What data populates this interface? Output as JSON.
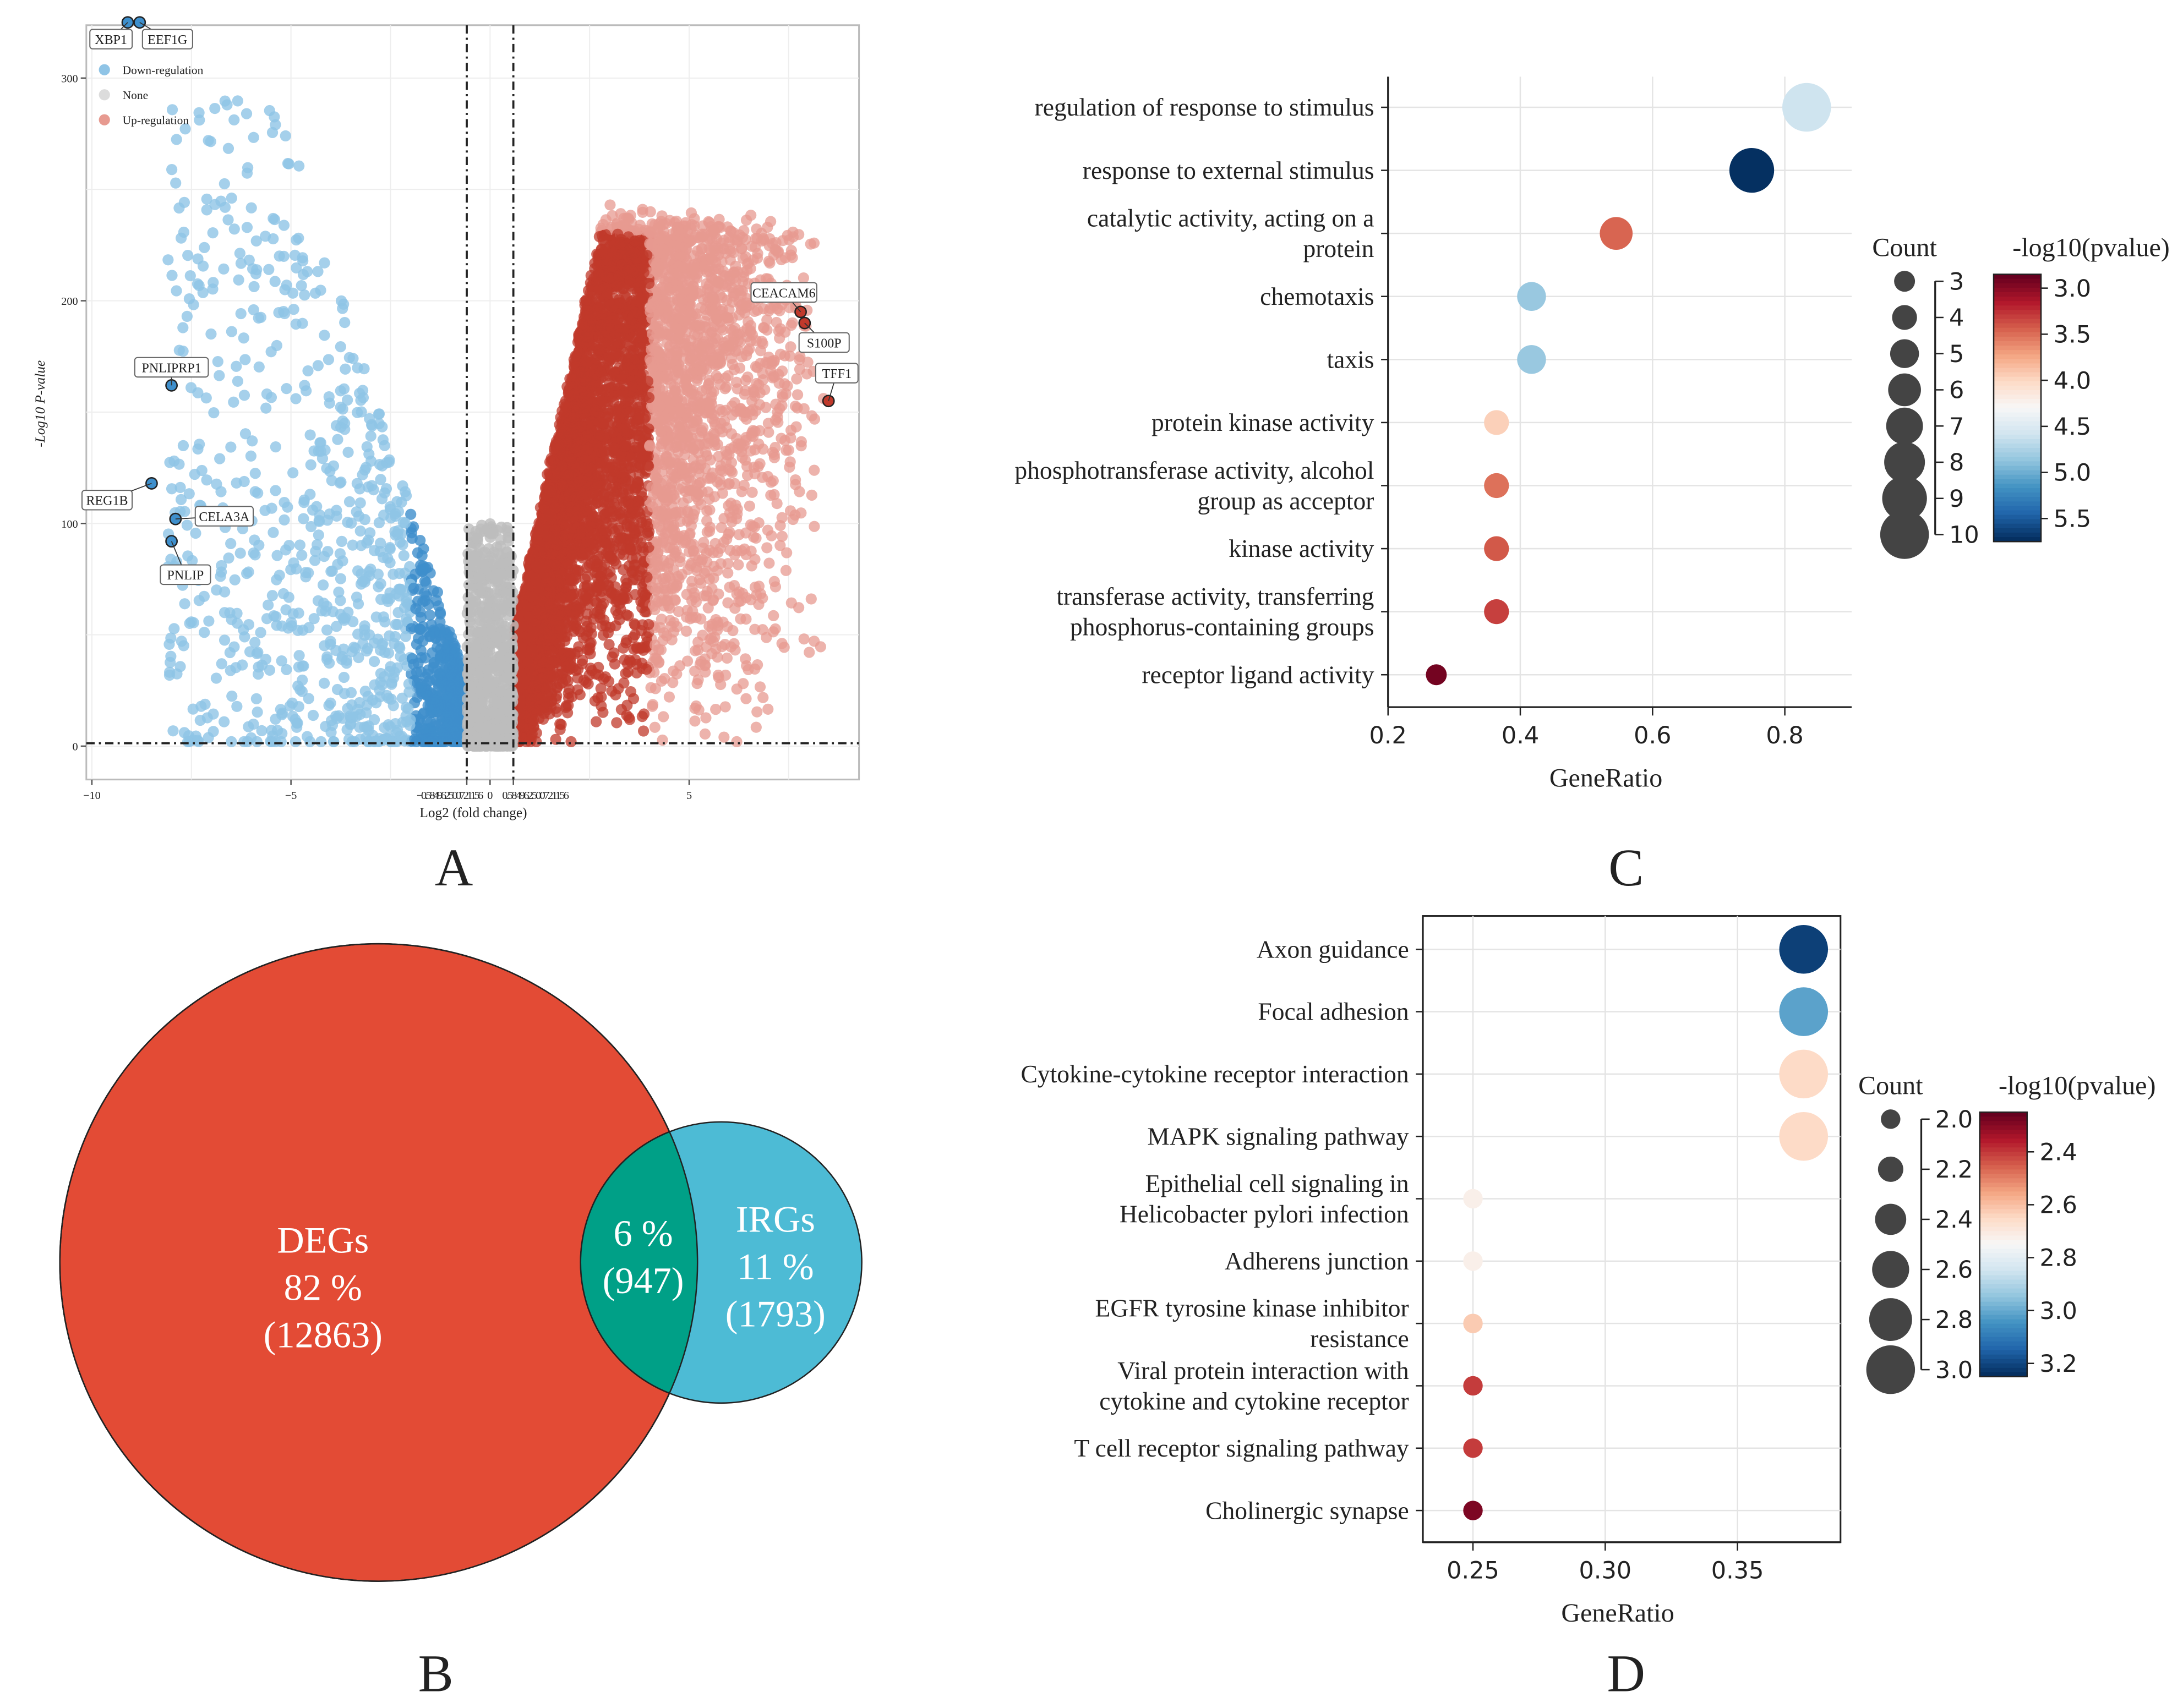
{
  "panel_labels": {
    "a": "A",
    "b": "B",
    "c": "C",
    "d": "D"
  },
  "chart_data": [
    {
      "id": "A",
      "type": "scatter",
      "title": "",
      "xlabel": "Log2 (fold change)",
      "ylabel": "-Log10 P-value",
      "xlim": [
        -10.1,
        9.3
      ],
      "ylim": [
        -15,
        335
      ],
      "xticks": [
        "-10",
        "-5",
        "-0.584962500721156",
        "0",
        "0.584962500721156",
        "5"
      ],
      "xtick_values": [
        -10,
        -5,
        -0.585,
        0,
        0.585,
        5
      ],
      "yticks": [
        0,
        100,
        200,
        300
      ],
      "thresholds": {
        "logfc": 0.585,
        "p_line": 1.3
      },
      "legend": [
        "Down-regulation",
        "None",
        "Up-regulation"
      ],
      "colors": {
        "down": "#3e8fcc",
        "none": "#bdbdbd",
        "up": "#c0392b",
        "down_light": "#8fc4e6",
        "up_light": "#e79a90"
      },
      "approx_counts": {
        "down": 1300,
        "none": 900,
        "up": 6500
      },
      "labeled_genes": [
        {
          "gene": "XBP1",
          "x": -9.1,
          "y": 325
        },
        {
          "gene": "EEF1G",
          "x": -8.8,
          "y": 325
        },
        {
          "gene": "PNLIPRP1",
          "x": -8.0,
          "y": 162
        },
        {
          "gene": "REG1B",
          "x": -8.5,
          "y": 118
        },
        {
          "gene": "CELA3A",
          "x": -7.9,
          "y": 102
        },
        {
          "gene": "PNLIP",
          "x": -8.0,
          "y": 92
        },
        {
          "gene": "CEACAM6",
          "x": 7.8,
          "y": 195
        },
        {
          "gene": "S100P",
          "x": 7.9,
          "y": 190
        },
        {
          "gene": "TFF1",
          "x": 8.5,
          "y": 155
        }
      ]
    },
    {
      "id": "B",
      "type": "venn",
      "sets": [
        {
          "name": "DEGs",
          "percent": "82 %",
          "count": "(12863)",
          "color": "#e34b35"
        },
        {
          "name": "IRGs",
          "percent": "11 %",
          "count": "(1793)",
          "color": "#4dbbd5"
        }
      ],
      "overlap": {
        "percent": "6 %",
        "count": "(947)",
        "color": "#00a087"
      }
    },
    {
      "id": "C",
      "type": "scatter",
      "xlabel": "GeneRatio",
      "xlim": [
        0.2,
        0.9
      ],
      "xticks": [
        0.2,
        0.4,
        0.6,
        0.8
      ],
      "terms": [
        "regulation of response to stimulus",
        "response to external stimulus",
        "catalytic activity, acting on a|protein",
        "chemotaxis",
        "taxis",
        "protein kinase activity",
        "phosphotransferase activity, alcohol|group as acceptor",
        "kinase activity",
        "transferase activity, transferring|phosphorus-containing groups",
        "receptor ligand activity"
      ],
      "gene_ratio": [
        0.833,
        0.75,
        0.545,
        0.417,
        0.417,
        0.364,
        0.364,
        0.364,
        0.364,
        0.273
      ],
      "neg_log10_p": [
        4.6,
        5.75,
        3.45,
        4.85,
        4.85,
        3.95,
        3.5,
        3.4,
        3.3,
        2.9
      ],
      "count": [
        10,
        9,
        6,
        5,
        5,
        4,
        4,
        4,
        4,
        3
      ],
      "size_legend_title": "Count",
      "size_legend": [
        3,
        4,
        5,
        6,
        7,
        8,
        9,
        10
      ],
      "color_legend_title": "-log10(pvalue)",
      "color_range": [
        2.85,
        5.75
      ],
      "color_ticks": [
        "3.0",
        "3.5",
        "4.0",
        "4.5",
        "5.0",
        "5.5"
      ]
    },
    {
      "id": "D",
      "type": "scatter",
      "xlabel": "GeneRatio",
      "xlim": [
        0.231,
        0.39
      ],
      "xticks": [
        "0.25",
        "0.30",
        "0.35"
      ],
      "xtick_values": [
        0.25,
        0.3,
        0.35
      ],
      "terms": [
        "Axon guidance",
        "Focal adhesion",
        "Cytokine-cytokine receptor interaction",
        "MAPK signaling pathway",
        "Epithelial cell signaling in|Helicobacter pylori infection",
        "Adherens junction",
        "EGFR tyrosine kinase inhibitor|resistance",
        "Viral protein interaction with|cytokine and cytokine receptor",
        "T cell receptor signaling pathway",
        "Cholinergic synapse"
      ],
      "gene_ratio": [
        0.375,
        0.375,
        0.375,
        0.375,
        0.25,
        0.25,
        0.25,
        0.25,
        0.25,
        0.25
      ],
      "neg_log10_p": [
        3.22,
        3.02,
        2.65,
        2.65,
        2.72,
        2.72,
        2.62,
        2.4,
        2.4,
        2.28
      ],
      "count": [
        3,
        3,
        3,
        3,
        2,
        2,
        2,
        2,
        2,
        2
      ],
      "size_legend_title": "Count",
      "size_legend": [
        "2.0",
        "2.2",
        "2.4",
        "2.6",
        "2.8",
        "3.0"
      ],
      "color_legend_title": "-log10(pvalue)",
      "color_range": [
        2.25,
        3.25
      ],
      "color_ticks": [
        "2.4",
        "2.6",
        "2.8",
        "3.0",
        "3.2"
      ]
    }
  ]
}
